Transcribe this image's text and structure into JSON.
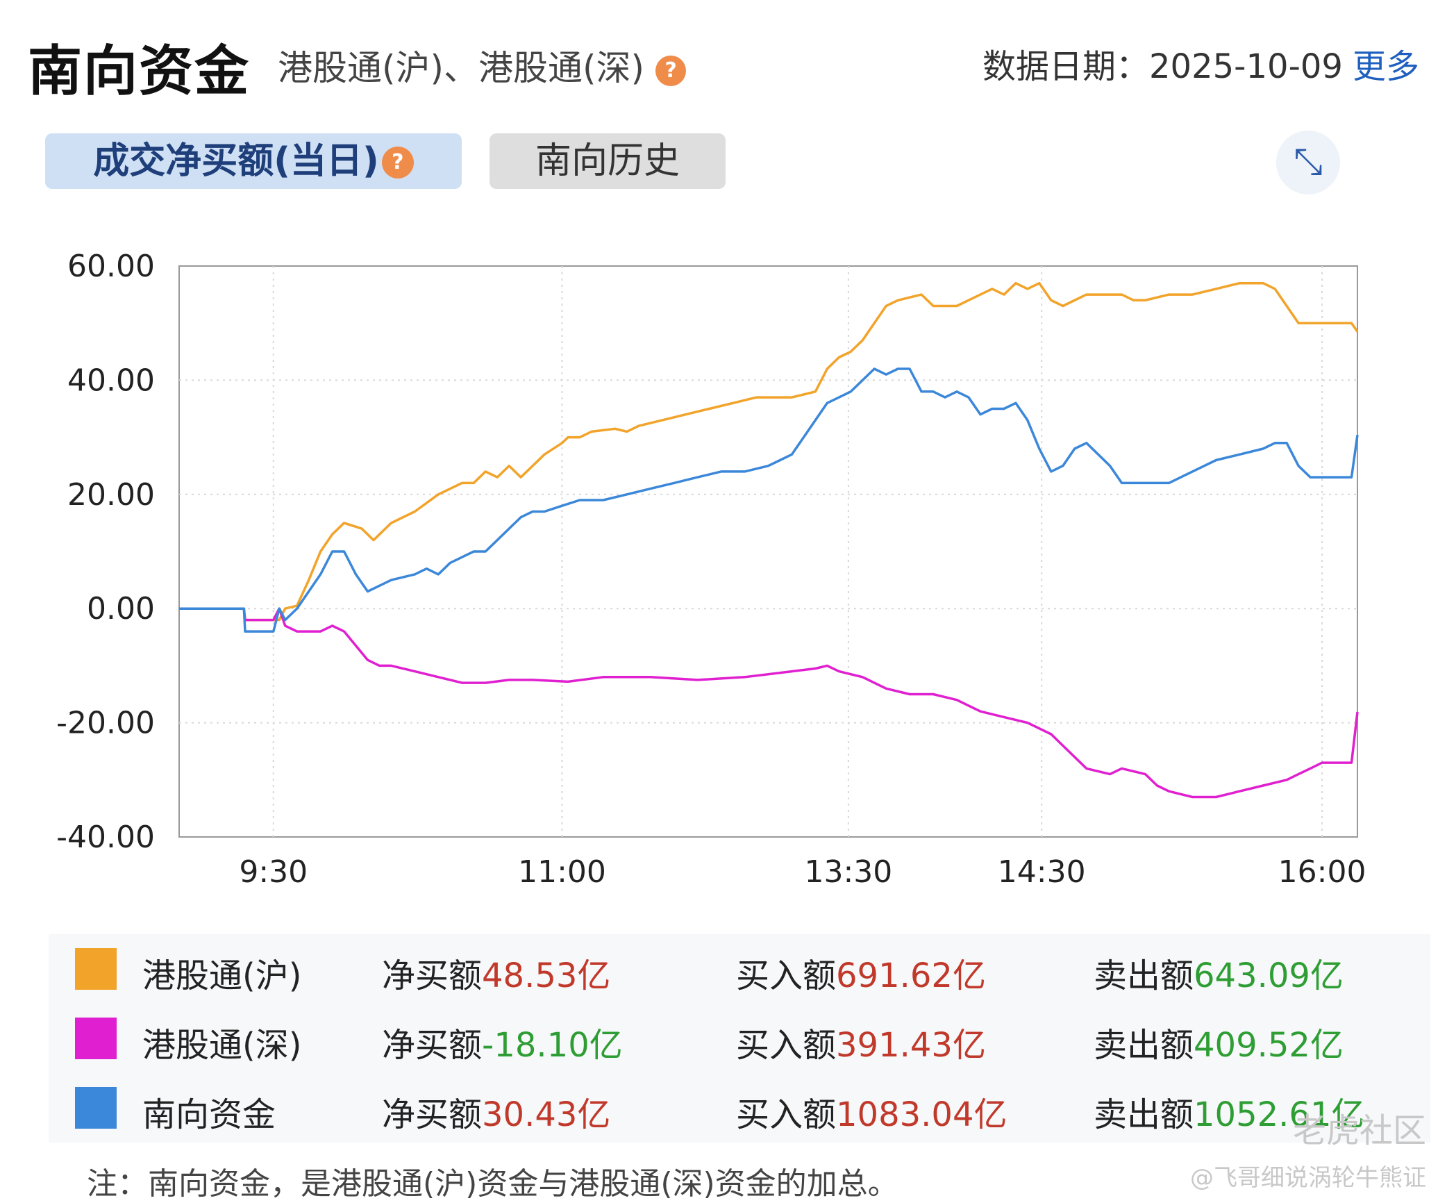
{
  "header": {
    "title": "南向资金",
    "subtitle": "港股通(沪)、港股通(深)",
    "help": "?",
    "date_label": "数据日期：2025-10-09",
    "more_label": "更多"
  },
  "tabs": [
    {
      "label": "成交净买额(当日)",
      "active": true
    },
    {
      "label": "南向历史",
      "active": false
    }
  ],
  "expand_icon": "expand-arrows-icon",
  "chart_data": {
    "type": "line",
    "title": "",
    "xlabel": "",
    "ylabel": "",
    "ylim": [
      -40,
      60
    ],
    "y_ticks": [
      "60.00",
      "40.00",
      "20.00",
      "0.00",
      "-20.00",
      "-40.00"
    ],
    "y_tick_values": [
      60,
      40,
      20,
      0,
      -20,
      -40
    ],
    "x_ticks": [
      "9:30",
      "11:00",
      "13:30",
      "14:30",
      "16:00"
    ],
    "x_tick_positions": [
      0.08,
      0.325,
      0.568,
      0.732,
      0.97
    ],
    "grid": true,
    "series": [
      {
        "name": "港股通(沪)",
        "color": "#f2a32a",
        "points": [
          [
            0.0,
            0
          ],
          [
            0.055,
            0
          ],
          [
            0.056,
            -2
          ],
          [
            0.085,
            -2
          ],
          [
            0.09,
            0
          ],
          [
            0.1,
            0.5
          ],
          [
            0.11,
            5
          ],
          [
            0.12,
            10
          ],
          [
            0.13,
            13
          ],
          [
            0.14,
            15
          ],
          [
            0.155,
            14
          ],
          [
            0.165,
            12
          ],
          [
            0.18,
            15
          ],
          [
            0.2,
            17
          ],
          [
            0.22,
            20
          ],
          [
            0.24,
            22
          ],
          [
            0.25,
            22
          ],
          [
            0.26,
            24
          ],
          [
            0.27,
            23
          ],
          [
            0.28,
            25
          ],
          [
            0.29,
            23
          ],
          [
            0.3,
            25
          ],
          [
            0.31,
            27
          ],
          [
            0.325,
            29
          ],
          [
            0.33,
            30
          ],
          [
            0.34,
            30
          ],
          [
            0.35,
            31
          ],
          [
            0.37,
            31.5
          ],
          [
            0.38,
            31
          ],
          [
            0.39,
            32
          ],
          [
            0.41,
            33
          ],
          [
            0.43,
            34
          ],
          [
            0.45,
            35
          ],
          [
            0.47,
            36
          ],
          [
            0.49,
            37
          ],
          [
            0.52,
            37
          ],
          [
            0.54,
            38
          ],
          [
            0.55,
            42
          ],
          [
            0.56,
            44
          ],
          [
            0.57,
            45
          ],
          [
            0.58,
            47
          ],
          [
            0.59,
            50
          ],
          [
            0.6,
            53
          ],
          [
            0.61,
            54
          ],
          [
            0.63,
            55
          ],
          [
            0.64,
            53
          ],
          [
            0.66,
            53
          ],
          [
            0.68,
            55
          ],
          [
            0.69,
            56
          ],
          [
            0.7,
            55
          ],
          [
            0.71,
            57
          ],
          [
            0.72,
            56
          ],
          [
            0.73,
            57
          ],
          [
            0.74,
            54
          ],
          [
            0.75,
            53
          ],
          [
            0.77,
            55
          ],
          [
            0.78,
            55
          ],
          [
            0.8,
            55
          ],
          [
            0.81,
            54
          ],
          [
            0.82,
            54
          ],
          [
            0.84,
            55
          ],
          [
            0.86,
            55
          ],
          [
            0.88,
            56
          ],
          [
            0.9,
            57
          ],
          [
            0.92,
            57
          ],
          [
            0.93,
            56
          ],
          [
            0.95,
            50
          ],
          [
            0.97,
            50
          ],
          [
            0.995,
            50
          ],
          [
            1.0,
            48.5
          ]
        ]
      },
      {
        "name": "港股通(深)",
        "color": "#e020d0",
        "points": [
          [
            0.0,
            0
          ],
          [
            0.055,
            0
          ],
          [
            0.056,
            -2
          ],
          [
            0.08,
            -2
          ],
          [
            0.085,
            0
          ],
          [
            0.09,
            -3
          ],
          [
            0.1,
            -4
          ],
          [
            0.12,
            -4
          ],
          [
            0.13,
            -3
          ],
          [
            0.14,
            -4
          ],
          [
            0.16,
            -9
          ],
          [
            0.17,
            -10
          ],
          [
            0.18,
            -10
          ],
          [
            0.2,
            -11
          ],
          [
            0.22,
            -12
          ],
          [
            0.24,
            -13
          ],
          [
            0.26,
            -13
          ],
          [
            0.28,
            -12.5
          ],
          [
            0.3,
            -12.5
          ],
          [
            0.33,
            -12.8
          ],
          [
            0.36,
            -12
          ],
          [
            0.4,
            -12
          ],
          [
            0.44,
            -12.5
          ],
          [
            0.48,
            -12
          ],
          [
            0.52,
            -11
          ],
          [
            0.54,
            -10.5
          ],
          [
            0.55,
            -10
          ],
          [
            0.56,
            -11
          ],
          [
            0.58,
            -12
          ],
          [
            0.6,
            -14
          ],
          [
            0.62,
            -15
          ],
          [
            0.64,
            -15
          ],
          [
            0.66,
            -16
          ],
          [
            0.68,
            -18
          ],
          [
            0.7,
            -19
          ],
          [
            0.72,
            -20
          ],
          [
            0.74,
            -22
          ],
          [
            0.75,
            -24
          ],
          [
            0.77,
            -28
          ],
          [
            0.79,
            -29
          ],
          [
            0.8,
            -28
          ],
          [
            0.82,
            -29
          ],
          [
            0.83,
            -31
          ],
          [
            0.84,
            -32
          ],
          [
            0.86,
            -33
          ],
          [
            0.88,
            -33
          ],
          [
            0.9,
            -32
          ],
          [
            0.92,
            -31
          ],
          [
            0.94,
            -30
          ],
          [
            0.95,
            -29
          ],
          [
            0.96,
            -28
          ],
          [
            0.97,
            -27
          ],
          [
            0.99,
            -27
          ],
          [
            0.995,
            -27
          ],
          [
            1.0,
            -18.1
          ]
        ]
      },
      {
        "name": "南向资金",
        "color": "#3b87d9",
        "points": [
          [
            0.0,
            0
          ],
          [
            0.055,
            0
          ],
          [
            0.056,
            -4
          ],
          [
            0.08,
            -4
          ],
          [
            0.085,
            0
          ],
          [
            0.09,
            -2
          ],
          [
            0.1,
            0
          ],
          [
            0.11,
            3
          ],
          [
            0.12,
            6
          ],
          [
            0.13,
            10
          ],
          [
            0.14,
            10
          ],
          [
            0.15,
            6
          ],
          [
            0.16,
            3
          ],
          [
            0.17,
            4
          ],
          [
            0.18,
            5
          ],
          [
            0.2,
            6
          ],
          [
            0.21,
            7
          ],
          [
            0.22,
            6
          ],
          [
            0.23,
            8
          ],
          [
            0.24,
            9
          ],
          [
            0.25,
            10
          ],
          [
            0.26,
            10
          ],
          [
            0.27,
            12
          ],
          [
            0.28,
            14
          ],
          [
            0.29,
            16
          ],
          [
            0.3,
            17
          ],
          [
            0.31,
            17
          ],
          [
            0.325,
            18
          ],
          [
            0.34,
            19
          ],
          [
            0.36,
            19
          ],
          [
            0.38,
            20
          ],
          [
            0.4,
            21
          ],
          [
            0.42,
            22
          ],
          [
            0.44,
            23
          ],
          [
            0.46,
            24
          ],
          [
            0.48,
            24
          ],
          [
            0.5,
            25
          ],
          [
            0.51,
            26
          ],
          [
            0.52,
            27
          ],
          [
            0.53,
            30
          ],
          [
            0.54,
            33
          ],
          [
            0.55,
            36
          ],
          [
            0.56,
            37
          ],
          [
            0.57,
            38
          ],
          [
            0.58,
            40
          ],
          [
            0.59,
            42
          ],
          [
            0.6,
            41
          ],
          [
            0.61,
            42
          ],
          [
            0.62,
            42
          ],
          [
            0.63,
            38
          ],
          [
            0.64,
            38
          ],
          [
            0.65,
            37
          ],
          [
            0.66,
            38
          ],
          [
            0.67,
            37
          ],
          [
            0.68,
            34
          ],
          [
            0.69,
            35
          ],
          [
            0.7,
            35
          ],
          [
            0.71,
            36
          ],
          [
            0.72,
            33
          ],
          [
            0.73,
            28
          ],
          [
            0.74,
            24
          ],
          [
            0.75,
            25
          ],
          [
            0.76,
            28
          ],
          [
            0.77,
            29
          ],
          [
            0.78,
            27
          ],
          [
            0.79,
            25
          ],
          [
            0.8,
            22
          ],
          [
            0.81,
            22
          ],
          [
            0.82,
            22
          ],
          [
            0.83,
            22
          ],
          [
            0.84,
            22
          ],
          [
            0.86,
            24
          ],
          [
            0.88,
            26
          ],
          [
            0.9,
            27
          ],
          [
            0.92,
            28
          ],
          [
            0.93,
            29
          ],
          [
            0.94,
            29
          ],
          [
            0.95,
            25
          ],
          [
            0.96,
            23
          ],
          [
            0.97,
            23
          ],
          [
            0.995,
            23
          ],
          [
            1.0,
            30.4
          ]
        ]
      }
    ]
  },
  "legend": [
    {
      "name": "港股通(沪)",
      "color": "#f2a32a",
      "net_label": "净买额",
      "net_value": "48.53亿",
      "net_color": "red",
      "buy_label": "买入额",
      "buy_value": "691.62亿",
      "sell_label": "卖出额",
      "sell_value": "643.09亿"
    },
    {
      "name": "港股通(深)",
      "color": "#e020d0",
      "net_label": "净买额",
      "net_value": "-18.10亿",
      "net_color": "green",
      "buy_label": "买入额",
      "buy_value": "391.43亿",
      "sell_label": "卖出额",
      "sell_value": "409.52亿"
    },
    {
      "name": "南向资金",
      "color": "#3b87d9",
      "net_label": "净买额",
      "net_value": "30.43亿",
      "net_color": "red",
      "buy_label": "买入额",
      "buy_value": "1083.04亿",
      "sell_label": "卖出额",
      "sell_value": "1052.61亿"
    }
  ],
  "note": "注：南向资金，是港股通(沪)资金与港股通(深)资金的加总。",
  "watermarks": [
    "老虎社区",
    "@飞哥细说涡轮牛熊证"
  ]
}
